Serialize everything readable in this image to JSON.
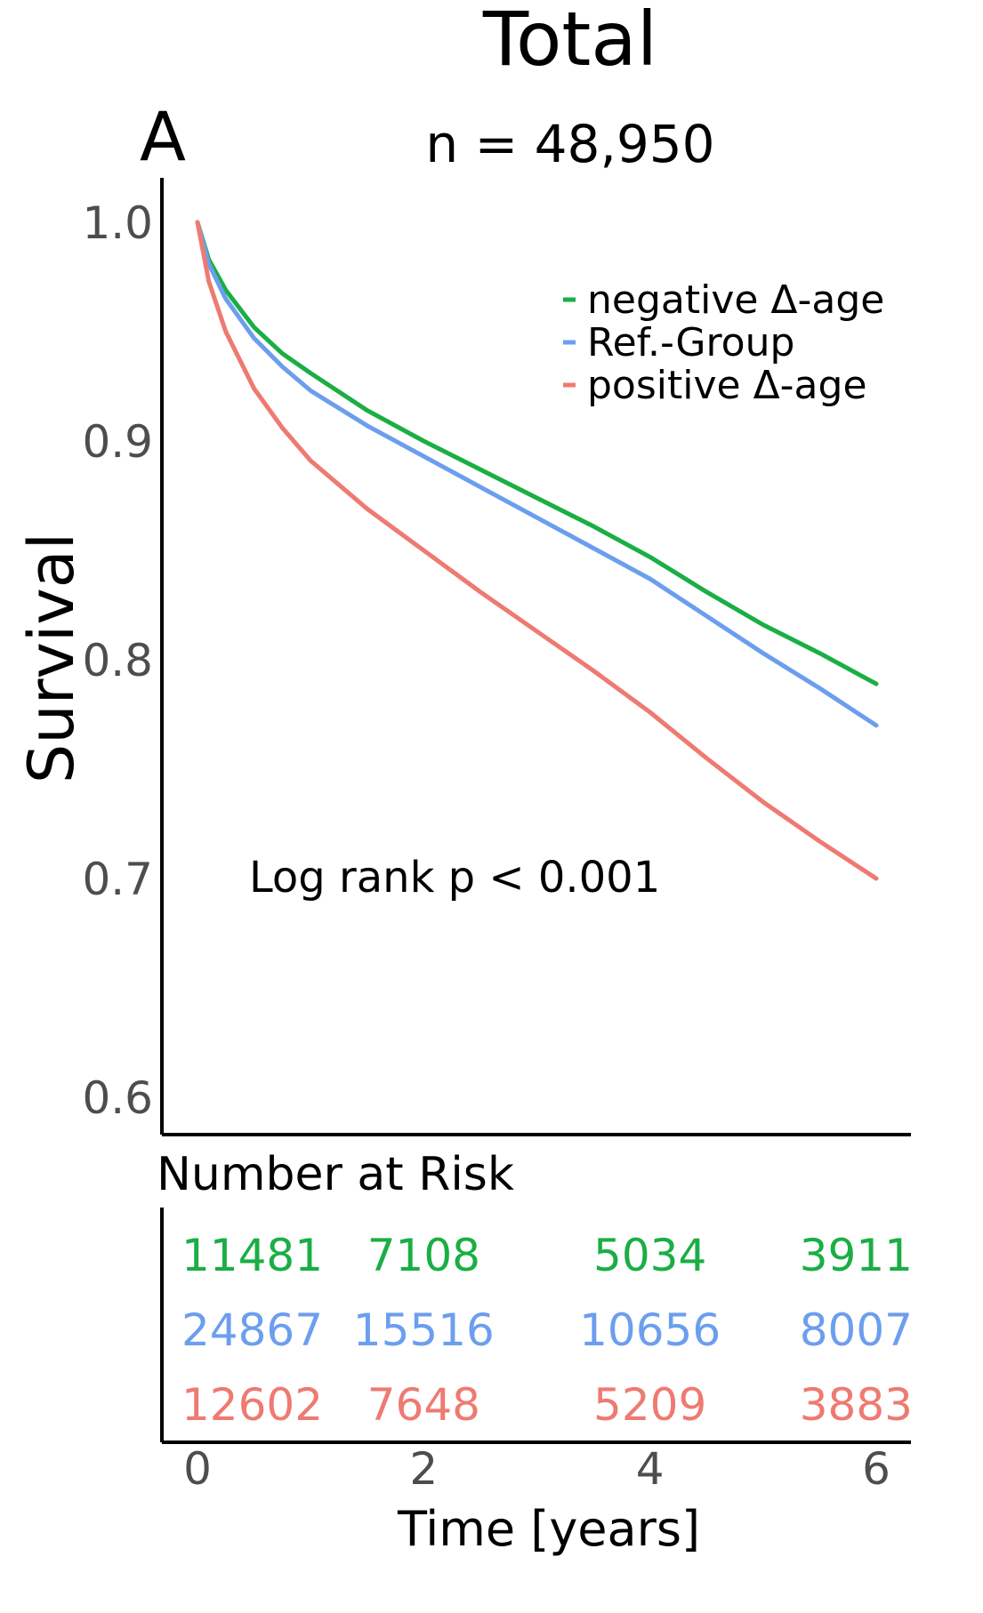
{
  "panel_letter": "A",
  "chart_data": {
    "type": "line",
    "title": "Total",
    "subtitle": "n = 48,950",
    "xlabel": "Time [years]",
    "ylabel": "Survival",
    "xlim": [
      0,
      6
    ],
    "ylim": [
      0.6,
      1.0
    ],
    "x_ticks": [
      0,
      2,
      4,
      6
    ],
    "y_ticks": [
      0.6,
      0.7,
      0.8,
      0.9,
      1.0
    ],
    "y_tick_labels": [
      "0.6",
      "0.7",
      "0.8",
      "0.9",
      "1.0"
    ],
    "grid": false,
    "legend": "top-right",
    "annotation": "Log rank p < 0.001",
    "series": [
      {
        "name": "negative Δ-age",
        "color": "#1aae44",
        "x": [
          0,
          0.1,
          0.25,
          0.5,
          0.75,
          1,
          1.5,
          2,
          2.5,
          3,
          3.5,
          4,
          4.5,
          5,
          5.5,
          6
        ],
        "y": [
          1.0,
          0.983,
          0.969,
          0.952,
          0.94,
          0.931,
          0.914,
          0.9,
          0.887,
          0.874,
          0.861,
          0.847,
          0.831,
          0.816,
          0.803,
          0.789
        ]
      },
      {
        "name": "Ref.-Group",
        "color": "#6c9eee",
        "x": [
          0,
          0.1,
          0.25,
          0.5,
          0.75,
          1,
          1.5,
          2,
          2.5,
          3,
          3.5,
          4,
          4.5,
          5,
          5.5,
          6
        ],
        "y": [
          1.0,
          0.981,
          0.965,
          0.947,
          0.934,
          0.923,
          0.907,
          0.893,
          0.879,
          0.865,
          0.851,
          0.837,
          0.82,
          0.803,
          0.787,
          0.77
        ]
      },
      {
        "name": "positive Δ-age",
        "color": "#ee7a72",
        "x": [
          0,
          0.1,
          0.25,
          0.5,
          0.75,
          1,
          1.5,
          2,
          2.5,
          3,
          3.5,
          4,
          4.5,
          5,
          5.5,
          6
        ],
        "y": [
          1.0,
          0.973,
          0.95,
          0.924,
          0.906,
          0.891,
          0.869,
          0.85,
          0.831,
          0.813,
          0.795,
          0.776,
          0.755,
          0.735,
          0.717,
          0.7
        ]
      }
    ],
    "risk_table": {
      "title": "Number at Risk",
      "times": [
        0,
        2,
        4,
        6
      ],
      "rows": [
        {
          "color": "#1aae44",
          "counts": [
            "11481",
            "7108",
            "5034",
            "3911"
          ]
        },
        {
          "color": "#6c9eee",
          "counts": [
            "24867",
            "15516",
            "10656",
            "8007"
          ]
        },
        {
          "color": "#ee7a72",
          "counts": [
            "12602",
            "7648",
            "5209",
            "3883"
          ]
        }
      ]
    }
  }
}
